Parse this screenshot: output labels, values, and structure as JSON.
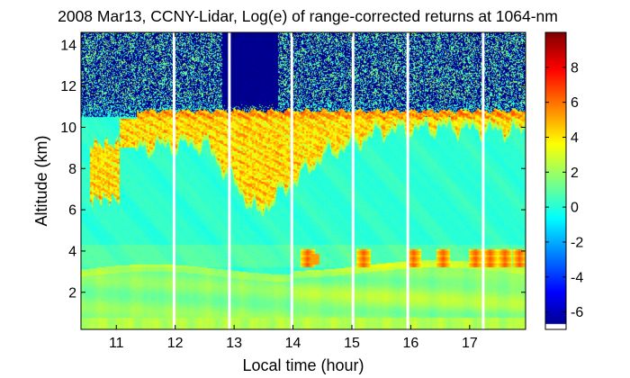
{
  "chart_data": {
    "type": "heatmap",
    "title": "2008 Mar13, CCNY-Lidar, Log(e) of range-corrected returns at 1064-nm",
    "xlabel": "Local time (hour)",
    "ylabel": "Altitude (km)",
    "xlim": [
      10.4,
      17.95
    ],
    "ylim": [
      0.2,
      14.6
    ],
    "x_ticks": [
      11,
      12,
      13,
      14,
      15,
      16,
      17
    ],
    "x_tick_labels": [
      "11",
      "12",
      "13",
      "14",
      "15",
      "16",
      "17"
    ],
    "y_ticks": [
      2,
      4,
      6,
      8,
      10,
      12,
      14
    ],
    "y_tick_labels": [
      "2",
      "4",
      "6",
      "8",
      "10",
      "12",
      "14"
    ],
    "colorbar": {
      "colormap": "jet",
      "range": [
        -7,
        10
      ],
      "ticks": [
        -6,
        -4,
        -2,
        0,
        2,
        4,
        6,
        8
      ],
      "tick_labels": [
        "-6",
        "-4",
        "-2",
        "0",
        "2",
        "4",
        "6",
        "8"
      ]
    },
    "data_gaps_hours": [
      11.98,
      12.92,
      13.98,
      15.02,
      15.95,
      17.23
    ],
    "features": {
      "boundary_layer_top_km": 3.0,
      "boundary_layer_levels": [
        [
          0.6,
          3.0
        ],
        [
          3.0,
          2.2
        ],
        [
          2.2,
          1.5
        ]
      ],
      "cirrus_layer_base_km": [
        [
          10.6,
          6.6
        ],
        [
          11.4,
          9.2
        ],
        [
          12.5,
          9.4
        ],
        [
          13.4,
          6.0
        ],
        [
          14.5,
          8.8
        ],
        [
          15.5,
          10.0
        ],
        [
          16.5,
          10.2
        ],
        [
          17.8,
          10.0
        ]
      ],
      "cirrus_layer_top_km": 10.8,
      "surface_layer_value": 3.0,
      "clean_air_value": 0.4,
      "noise_region_above_km": 10.5
    },
    "grid": false
  },
  "colors": {
    "background": "#ffffff",
    "axis": "#000000",
    "gap": "#ffffff"
  }
}
